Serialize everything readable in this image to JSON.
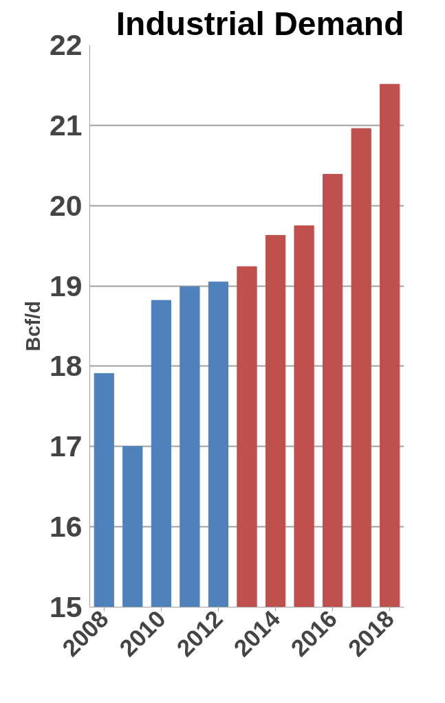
{
  "chart_data": {
    "type": "bar",
    "title": "Industrial Demand",
    "ylabel": "Bcf/d",
    "categories": [
      "2008",
      null,
      "2010",
      null,
      "2012",
      null,
      "2014",
      null,
      "2016",
      null,
      "2018"
    ],
    "values": [
      17.91,
      17.0,
      18.82,
      18.99,
      19.05,
      19.24,
      19.63,
      19.75,
      20.39,
      20.96,
      21.51
    ],
    "colors": [
      "#4f81bd",
      "#4f81bd",
      "#4f81bd",
      "#4f81bd",
      "#4f81bd",
      "#c0504d",
      "#c0504d",
      "#c0504d",
      "#c0504d",
      "#c0504d",
      "#c0504d"
    ],
    "ylim": [
      15,
      22
    ],
    "yticks": [
      15,
      16,
      17,
      18,
      19,
      20,
      21,
      22
    ],
    "grid": "y"
  }
}
